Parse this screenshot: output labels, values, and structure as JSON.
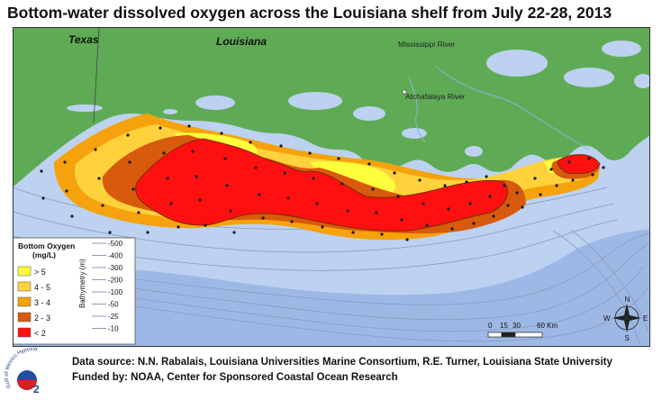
{
  "title": "Bottom-water dissolved oxygen across the Louisiana shelf from July 22-28, 2013",
  "map": {
    "state_labels": [
      "Texas",
      "Louisiana"
    ],
    "river_labels": [
      "Mississippi River",
      "Atchafalaya River"
    ],
    "colors": {
      "land": "#5fab55",
      "water_shelf": "#bcd2f0",
      "water_deep": "#9eb8e6",
      "bathymetry_line": "#8a9bb8",
      "oxygen_gt5": "#ffff3c",
      "oxygen_4_5": "#ffd23c",
      "oxygen_3_4": "#f6a20c",
      "oxygen_2_3": "#d85a0c",
      "oxygen_lt2": "#ff1010"
    }
  },
  "legend": {
    "title_line1": "Bottom Oxygen",
    "title_line2": "(mg/L)",
    "oxygen_classes": [
      {
        "label": "> 5",
        "color": "#ffff3c"
      },
      {
        "label": "4 - 5",
        "color": "#ffd23c"
      },
      {
        "label": "3 - 4",
        "color": "#f6a20c"
      },
      {
        "label": "2 - 3",
        "color": "#d85a0c"
      },
      {
        "label": "< 2",
        "color": "#ff1010"
      }
    ],
    "bathymetry_title": "Bathymetry (m)",
    "bathymetry_levels": [
      "-500",
      "-400",
      "-300",
      "-200",
      "-100",
      "-50",
      "-25",
      "-10"
    ]
  },
  "scale_bar": {
    "labels": [
      "0",
      "15",
      "30",
      "60 Km"
    ]
  },
  "compass": {
    "n": "N",
    "s": "S",
    "e": "E",
    "w": "W"
  },
  "logo": {
    "text": "Gulf of Mexico Hypoxia",
    "mark": "2"
  },
  "credits": {
    "data_source": "Data source: N.N. Rabalais, Louisiana Universities Marine Consortium, R.E. Turner, Louisiana State University",
    "funded_by": "Funded by: NOAA, Center for Sponsored Coastal Ocean Research"
  }
}
